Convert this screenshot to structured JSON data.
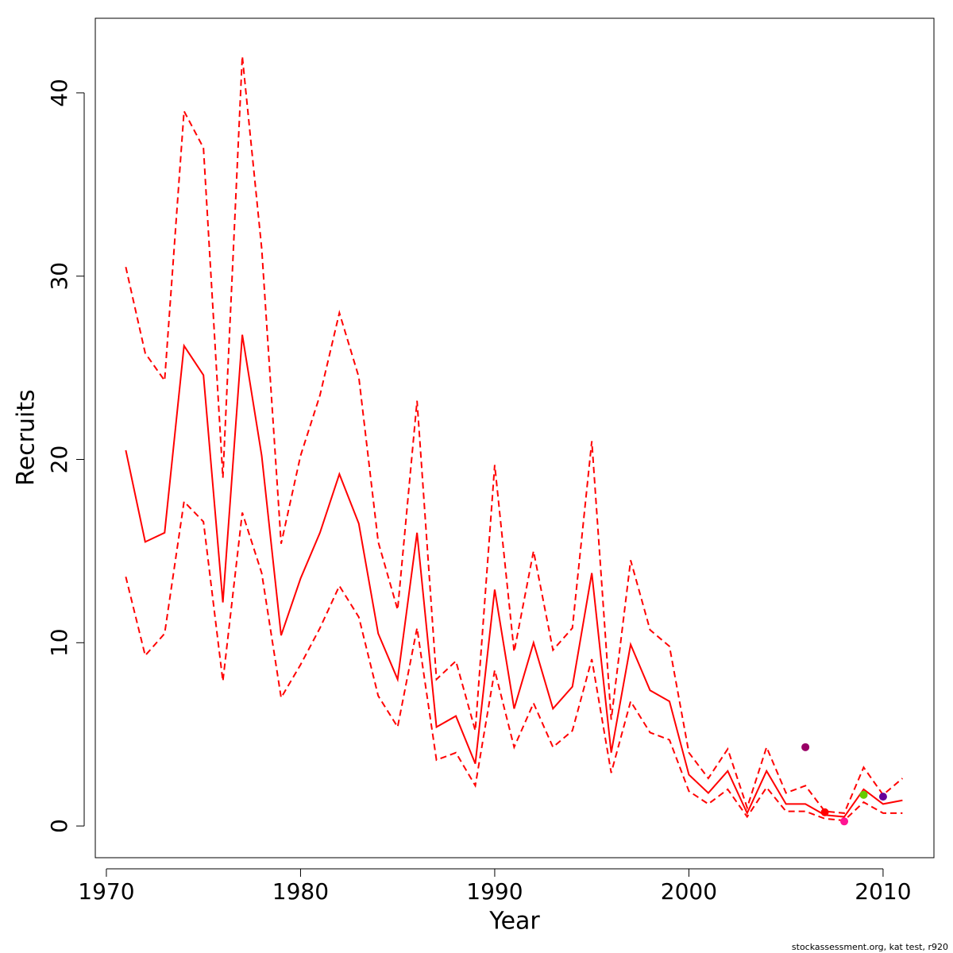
{
  "chart_data": {
    "type": "line",
    "x_label": "Year",
    "y_label": "Recruits",
    "footer": "stockassessment.org, kat  test, r920",
    "xlim": [
      1969.43,
      2012.62
    ],
    "ylim": [
      -1.73,
      44.07
    ],
    "xticks": [
      1970,
      1980,
      1990,
      2000,
      2010
    ],
    "yticks": [
      0,
      10,
      20,
      30,
      40
    ],
    "x": [
      1971,
      1972,
      1973,
      1974,
      1975,
      1976,
      1977,
      1978,
      1979,
      1980,
      1981,
      1982,
      1983,
      1984,
      1985,
      1986,
      1987,
      1988,
      1989,
      1990,
      1991,
      1992,
      1993,
      1994,
      1995,
      1996,
      1997,
      1998,
      1999,
      2000,
      2001,
      2002,
      2003,
      2004,
      2005,
      2006,
      2007,
      2008,
      2009,
      2010,
      2011
    ],
    "series": [
      {
        "color": "#ff0000",
        "dash": false,
        "values": [
          20.5,
          15.5,
          16,
          26.2,
          24.6,
          12.2,
          26.8,
          20.2,
          10.4,
          13.5,
          16,
          19.2,
          16.5,
          10.5,
          8,
          16,
          5.4,
          6,
          3.4,
          12.9,
          6.4,
          10,
          6.4,
          7.6,
          13.8,
          4,
          9.9,
          7.4,
          6.8,
          2.8,
          1.8,
          3.0,
          0.7,
          3.0,
          1.2,
          1.2,
          0.6,
          0.5,
          2.0,
          1.2,
          1.4
        ]
      },
      {
        "color": "#ff0000",
        "dash": true,
        "values": [
          30.5,
          25.8,
          24.3,
          39,
          37,
          19,
          42,
          31.5,
          15.4,
          20.2,
          23.5,
          28,
          24.5,
          15.5,
          11.8,
          23.2,
          8,
          9,
          5.2,
          19.7,
          9.5,
          15,
          9.6,
          10.8,
          21,
          5.8,
          14.5,
          10.7,
          9.8,
          4,
          2.6,
          4.2,
          1,
          4.3,
          1.8,
          2.2,
          0.8,
          0.7,
          3.2,
          1.7,
          2.6
        ]
      },
      {
        "color": "#ff0000",
        "dash": true,
        "values": [
          13.6,
          9.3,
          10.5,
          17.7,
          16.6,
          7.9,
          17.1,
          13.8,
          7,
          8.8,
          10.8,
          13.1,
          11.4,
          7.1,
          5.4,
          10.8,
          3.6,
          4,
          2.2,
          8.5,
          4.3,
          6.7,
          4.3,
          5.2,
          9.1,
          2.9,
          6.8,
          5.1,
          4.7,
          1.9,
          1.2,
          2.0,
          0.5,
          2.1,
          0.8,
          0.8,
          0.4,
          0.3,
          1.3,
          0.7,
          0.7
        ]
      }
    ],
    "points": {
      "x": [
        2006,
        2007,
        2008,
        2009,
        2010
      ],
      "values": [
        4.3,
        0.75,
        0.25,
        1.7,
        1.6
      ],
      "colors": [
        "#990066",
        "#ff0000",
        "#ff1493",
        "#66cc00",
        "#660099"
      ]
    }
  }
}
